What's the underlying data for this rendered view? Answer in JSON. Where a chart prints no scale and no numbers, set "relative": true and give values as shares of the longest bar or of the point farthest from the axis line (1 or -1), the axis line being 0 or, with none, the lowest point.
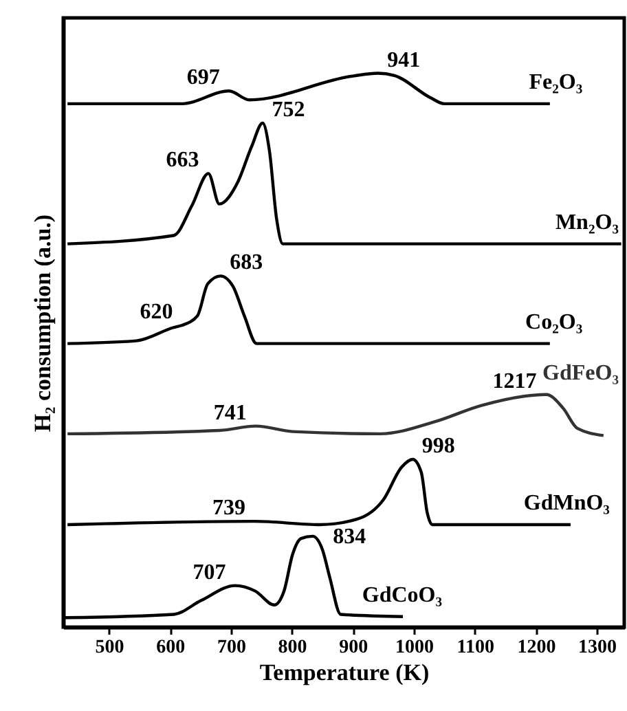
{
  "chart_data": {
    "type": "line",
    "relative": true,
    "xlabel": "Temperature (K)",
    "ylabel": "H₂ consumption (a.u.)",
    "xlim": [
      425,
      1345
    ],
    "xticks": [
      500,
      600,
      700,
      800,
      900,
      1000,
      1100,
      1200,
      1300
    ],
    "series": [
      {
        "name": "Fe₂O₃",
        "color": "#000000",
        "x": [
          432,
          620,
          697,
          730,
          900,
          941,
          968,
          1027,
          1050,
          1223
        ],
        "values": [
          0.945,
          0.945,
          0.968,
          0.952,
          0.995,
          1,
          0.996,
          0.956,
          0.945,
          0.945
        ]
      },
      {
        "name": "Mn₂O₃",
        "color": "#000000",
        "x": [
          432,
          606,
          636,
          663,
          681,
          711,
          734,
          752,
          763,
          775,
          785,
          1340
        ],
        "values": [
          0.692,
          0.707,
          0.761,
          0.819,
          0.764,
          0.803,
          0.868,
          0.91,
          0.861,
          0.736,
          0.692,
          0.692
        ]
      },
      {
        "name": "Co₂O₃",
        "color": "#000000",
        "x": [
          432,
          545,
          606,
          620,
          645,
          662,
          683,
          703,
          722,
          742,
          1223
        ],
        "values": [
          0.512,
          0.517,
          0.541,
          0.545,
          0.562,
          0.62,
          0.634,
          0.616,
          0.562,
          0.512,
          0.512
        ]
      },
      {
        "name": "GdFeO₃",
        "color": "#333333",
        "x": [
          432,
          681,
          741,
          801,
          945,
          1035,
          1110,
          1217,
          1245,
          1268,
          1311
        ],
        "values": [
          0.349,
          0.355,
          0.363,
          0.353,
          0.349,
          0.371,
          0.4,
          0.42,
          0.395,
          0.359,
          0.346
        ]
      },
      {
        "name": "GdMnO₃",
        "color": "#000000",
        "x": [
          432,
          739,
          846,
          907,
          950,
          980,
          998,
          1012,
          1022,
          1030,
          1257
        ],
        "values": [
          0.185,
          0.191,
          0.185,
          0.195,
          0.23,
          0.289,
          0.303,
          0.28,
          0.206,
          0.185,
          0.185
        ]
      },
      {
        "name": "GdCoO₃",
        "color": "#000000",
        "x": [
          428,
          606,
          651,
          707,
          740,
          771,
          787,
          801,
          815,
          834,
          850,
          862,
          880,
          982
        ],
        "values": [
          0.017,
          0.023,
          0.048,
          0.075,
          0.065,
          0.04,
          0.065,
          0.131,
          0.16,
          0.164,
          0.14,
          0.09,
          0.023,
          0.019
        ]
      }
    ],
    "annotations": [
      {
        "text": "697",
        "x": 697,
        "y": 0.968
      },
      {
        "text": "941",
        "x": 941,
        "y": 1
      },
      {
        "text": "663",
        "x": 663,
        "y": 0.819
      },
      {
        "text": "752",
        "x": 752,
        "y": 0.91
      },
      {
        "text": "620",
        "x": 620,
        "y": 0.545
      },
      {
        "text": "683",
        "x": 683,
        "y": 0.634
      },
      {
        "text": "741",
        "x": 741,
        "y": 0.363
      },
      {
        "text": "1217",
        "x": 1217,
        "y": 0.42
      },
      {
        "text": "739",
        "x": 739,
        "y": 0.191
      },
      {
        "text": "998",
        "x": 998,
        "y": 0.303
      },
      {
        "text": "707",
        "x": 707,
        "y": 0.075
      },
      {
        "text": "834",
        "x": 834,
        "y": 0.164
      }
    ]
  }
}
